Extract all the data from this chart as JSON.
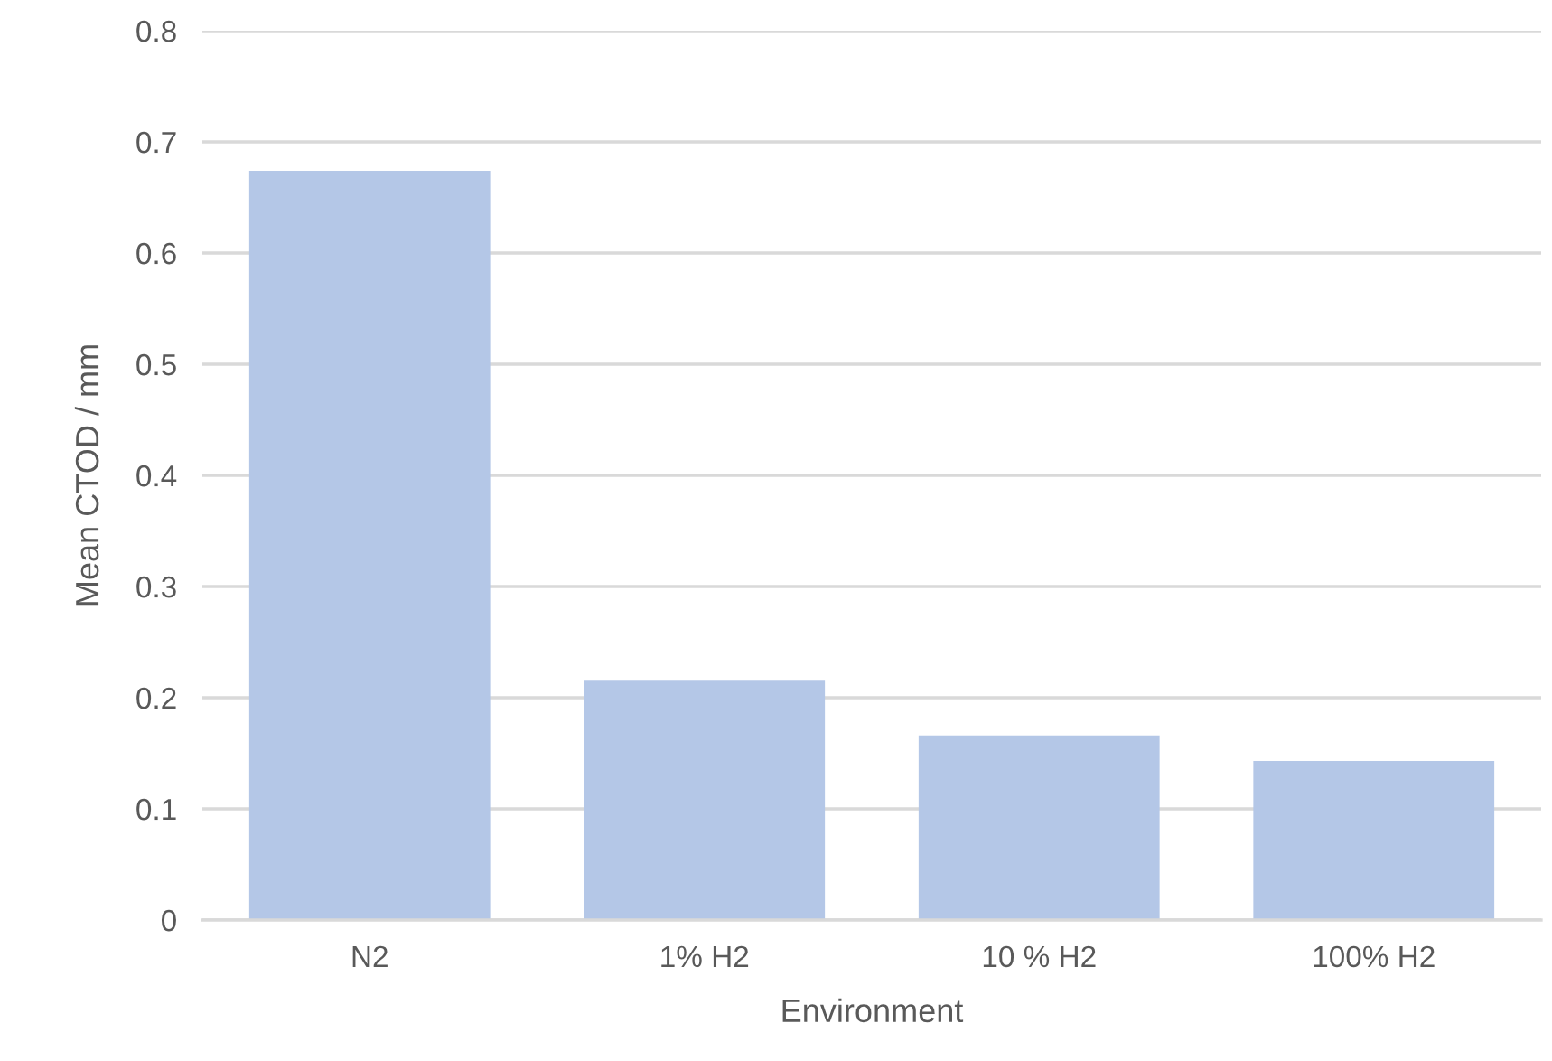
{
  "chart_data": {
    "type": "bar",
    "xlabel": "Environment",
    "ylabel": "Mean CTOD / mm",
    "categories": [
      "N2",
      "1% H2",
      "10 % H2",
      "100% H2"
    ],
    "values": [
      0.674,
      0.216,
      0.166,
      0.143
    ],
    "color": "#b4c7e7",
    "ylim": [
      0,
      0.8
    ],
    "yticks": [
      {
        "value": 0,
        "label": "0"
      },
      0.1,
      0.2,
      0.3,
      0.4,
      0.5,
      0.6,
      0.7,
      0.8
    ],
    "grid": "y"
  }
}
